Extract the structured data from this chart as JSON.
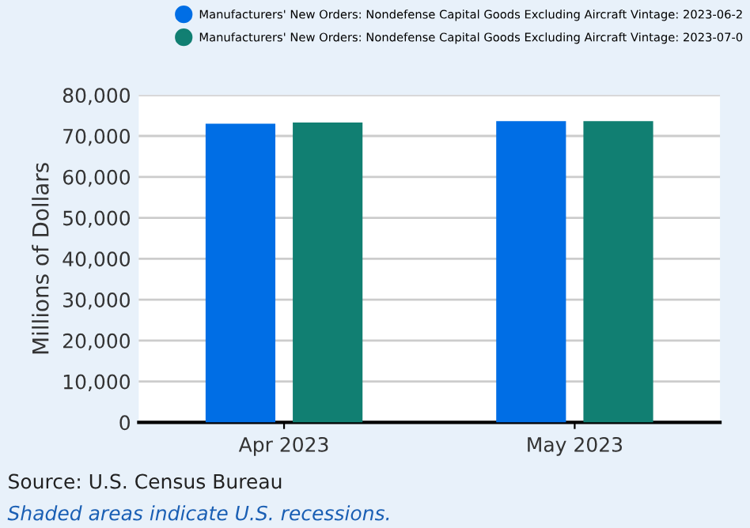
{
  "chart_data": {
    "type": "bar",
    "ylabel": "Millions of Dollars",
    "categories": [
      "Apr 2023",
      "May 2023"
    ],
    "series": [
      {
        "name": "Manufacturers' New Orders: Nondefense Capital Goods Excluding Aircraft Vintage: 2023-06-2",
        "color": "#006ee5",
        "values": [
          73000,
          73600
        ]
      },
      {
        "name": "Manufacturers' New Orders: Nondefense Capital Goods Excluding Aircraft Vintage: 2023-07-0",
        "color": "#117f72",
        "values": [
          73300,
          73600
        ]
      }
    ],
    "ylim": [
      0,
      80000
    ],
    "yticks": [
      {
        "value": 0,
        "label": "0"
      },
      {
        "value": 10000,
        "label": "10,000"
      },
      {
        "value": 20000,
        "label": "20,000"
      },
      {
        "value": 30000,
        "label": "30,000"
      },
      {
        "value": 40000,
        "label": "40,000"
      },
      {
        "value": 50000,
        "label": "50,000"
      },
      {
        "value": 60000,
        "label": "60,000"
      },
      {
        "value": 70000,
        "label": "70,000"
      },
      {
        "value": 80000,
        "label": "80,000"
      }
    ],
    "grid": "y",
    "legend": "top",
    "annotations": [
      "Source: U.S. Census Bureau",
      "Shaded areas indicate U.S. recessions."
    ]
  }
}
